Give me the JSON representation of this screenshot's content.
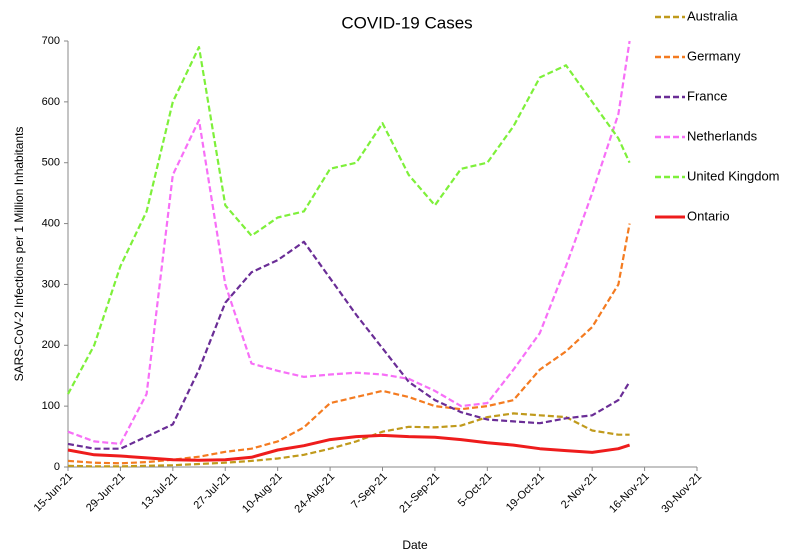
{
  "chart_data": {
    "type": "line",
    "title": "COVID-19 Cases",
    "x_label": "Date",
    "y_label": "SARS-CoV-2 Infections per 1 Million Inhabitants",
    "x": [
      "15-Jun-21",
      "22-Jun-21",
      "29-Jun-21",
      "6-Jul-21",
      "13-Jul-21",
      "20-Jul-21",
      "27-Jul-21",
      "3-Aug-21",
      "10-Aug-21",
      "17-Aug-21",
      "24-Aug-21",
      "31-Aug-21",
      "7-Sep-21",
      "14-Sep-21",
      "21-Sep-21",
      "28-Sep-21",
      "5-Oct-21",
      "12-Oct-21",
      "19-Oct-21",
      "26-Oct-21",
      "2-Nov-21",
      "9-Nov-21",
      "12-Nov-21"
    ],
    "series": [
      {
        "name": "Australia",
        "color": "#c09a1c",
        "line_style": "dashed",
        "values": [
          2,
          1,
          1,
          2,
          3,
          5,
          7,
          10,
          14,
          20,
          30,
          42,
          58,
          66,
          65,
          68,
          82,
          88,
          85,
          82,
          60,
          53,
          53
        ]
      },
      {
        "name": "Germany",
        "color": "#f47b20",
        "line_style": "dashed",
        "values": [
          10,
          7,
          6,
          8,
          12,
          17,
          25,
          30,
          42,
          65,
          105,
          115,
          125,
          115,
          100,
          95,
          100,
          110,
          160,
          190,
          230,
          300,
          400
        ]
      },
      {
        "name": "France",
        "color": "#6a2d96",
        "line_style": "dashed",
        "values": [
          38,
          30,
          30,
          50,
          70,
          160,
          270,
          320,
          340,
          370,
          310,
          250,
          195,
          140,
          110,
          90,
          78,
          75,
          72,
          80,
          85,
          110,
          140
        ]
      },
      {
        "name": "Netherlands",
        "color": "#f76ff7",
        "line_style": "dashed",
        "values": [
          58,
          42,
          38,
          120,
          480,
          570,
          300,
          170,
          158,
          148,
          152,
          155,
          152,
          145,
          125,
          100,
          105,
          160,
          220,
          330,
          450,
          580,
          700
        ]
      },
      {
        "name": "United Kingdom",
        "color": "#7ef03a",
        "line_style": "dashed",
        "values": [
          120,
          200,
          330,
          420,
          600,
          690,
          430,
          380,
          410,
          420,
          490,
          500,
          565,
          480,
          430,
          490,
          500,
          560,
          640,
          660,
          600,
          540,
          500
        ]
      },
      {
        "name": "Ontario",
        "color": "#ee1c1c",
        "line_style": "solid",
        "values": [
          28,
          20,
          18,
          15,
          12,
          11,
          12,
          16,
          28,
          35,
          45,
          50,
          52,
          50,
          49,
          45,
          40,
          36,
          30,
          27,
          24,
          30,
          36
        ]
      }
    ],
    "xlim": [
      "15-Jun-21",
      "30-Nov-21"
    ],
    "xticks": [
      "15-Jun-21",
      "29-Jun-21",
      "13-Jul-21",
      "27-Jul-21",
      "10-Aug-21",
      "24-Aug-21",
      "7-Sep-21",
      "21-Sep-21",
      "5-Oct-21",
      "19-Oct-21",
      "2-Nov-21",
      "16-Nov-21",
      "30-Nov-21"
    ],
    "ylim": [
      0,
      700
    ],
    "yticks": [
      0,
      100,
      200,
      300,
      400,
      500,
      600,
      700
    ],
    "grid": false,
    "legend": "right"
  }
}
